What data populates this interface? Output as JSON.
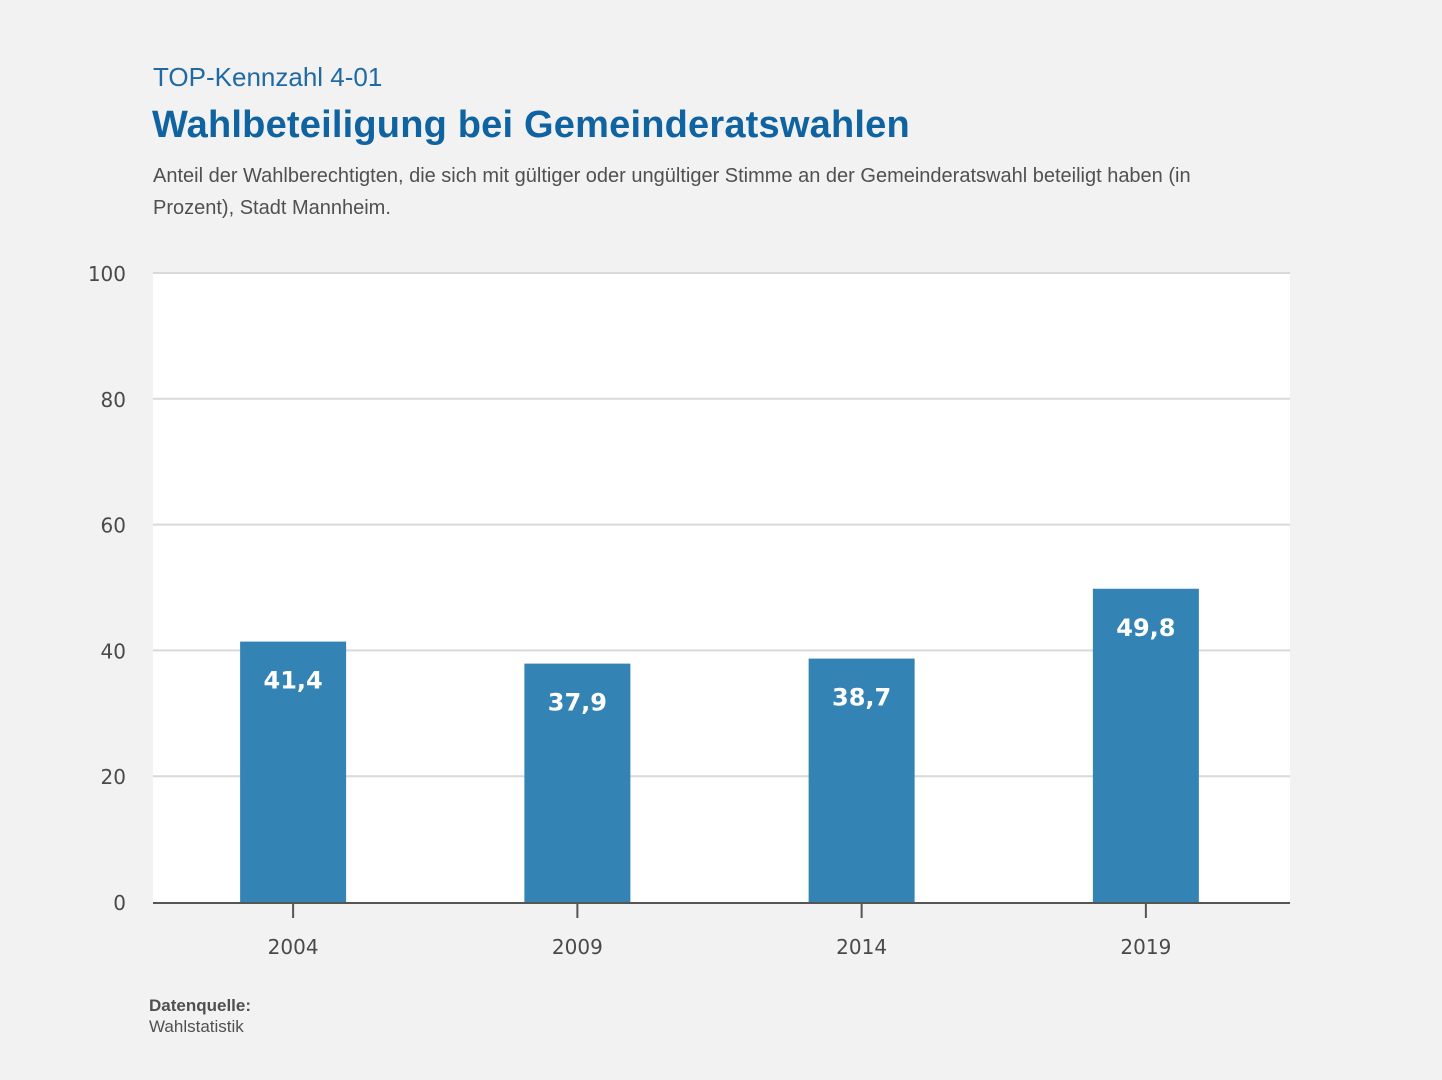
{
  "header": {
    "kicker": "TOP-Kennzahl 4-01",
    "title": "Wahlbeteiligung bei Gemeinderatswahlen",
    "subtitle": "Anteil der Wahlberechtigten, die sich mit gültiger oder ungültiger Stimme an der Gemeinderatswahl beteiligt haben (in Prozent), Stadt Mannheim."
  },
  "footer": {
    "source_label": "Datenquelle:",
    "source_value": "Wahlstatistik"
  },
  "colors": {
    "bar": "#3483b5",
    "title": "#0f63a0",
    "grid": "#d9d9d9",
    "axis": "#555555",
    "plot_background": "#ffffff",
    "page_background": "#f2f2f2"
  },
  "chart_data": {
    "type": "bar",
    "title": "Wahlbeteiligung bei Gemeinderatswahlen",
    "xlabel": "",
    "ylabel": "",
    "categories": [
      "2004",
      "2009",
      "2014",
      "2019"
    ],
    "values": [
      41.4,
      37.9,
      38.7,
      49.8
    ],
    "value_labels": [
      "41,4",
      "37,9",
      "38,7",
      "49,8"
    ],
    "ylim": [
      0,
      100
    ],
    "yticks": [
      0,
      20,
      40,
      60,
      80,
      100
    ],
    "ytick_labels": [
      "0",
      "20",
      "40",
      "60",
      "80",
      "100"
    ],
    "grid": true,
    "legend": "none"
  }
}
